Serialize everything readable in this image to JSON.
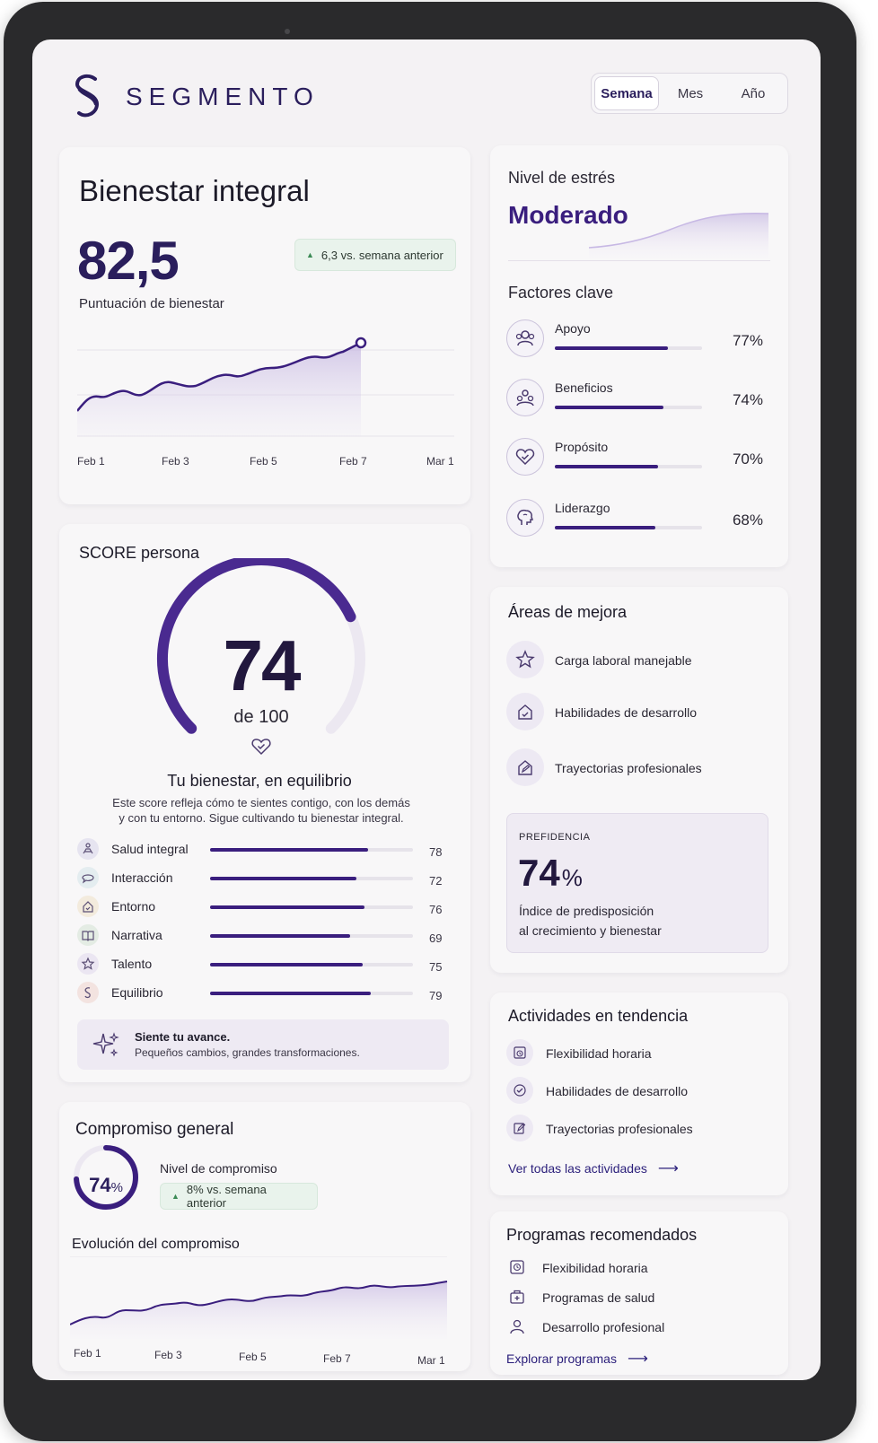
{
  "brand": {
    "name": "SEGMENTO"
  },
  "period_switch": {
    "options": [
      "Semana",
      "Mes",
      "Año"
    ],
    "selected": "Semana"
  },
  "wellbeing": {
    "title": "Bienestar integral",
    "score": "82,5",
    "score_label": "Puntuación de bienestar",
    "trend": "6,3 vs. semana anterior",
    "x_ticks": [
      "Feb 1",
      "Feb 3",
      "Feb 5",
      "Feb 7",
      "Mar 1"
    ]
  },
  "stress": {
    "label": "Nivel de estrés",
    "level": "Moderado",
    "factors_title": "Factores clave",
    "factors": [
      {
        "name": "Apoyo",
        "value": 77,
        "pct": "77%",
        "icon": "people-icon"
      },
      {
        "name": "Beneficios",
        "value": 74,
        "pct": "74%",
        "icon": "group-icon"
      },
      {
        "name": "Propósito",
        "value": 70,
        "pct": "70%",
        "icon": "heart-check-icon"
      },
      {
        "name": "Liderazgo",
        "value": 68,
        "pct": "68%",
        "icon": "brain-icon"
      }
    ]
  },
  "score_persona": {
    "title": "SCORE persona",
    "score": "74",
    "out_of": "de 100",
    "gauge_value": 74,
    "headline": "Tu bienestar, en equilibrio",
    "description_line1": "Este score refleja cómo te sientes contigo, con los demás",
    "description_line2": "y con tu entorno. Sigue cultivando tu bienestar integral.",
    "metrics": [
      {
        "name": "Salud integral",
        "value": 78,
        "icon": "meditation-icon",
        "bg": "#e6e4f0"
      },
      {
        "name": "Interacción",
        "value": 72,
        "icon": "chat-icon",
        "bg": "#e4edf0"
      },
      {
        "name": "Entorno",
        "value": 76,
        "icon": "house-icon",
        "bg": "#f3ebdd"
      },
      {
        "name": "Narrativa",
        "value": 69,
        "icon": "book-icon",
        "bg": "#e4ece4"
      },
      {
        "name": "Talento",
        "value": 75,
        "icon": "star-icon",
        "bg": "#ebe6f2"
      },
      {
        "name": "Equilibrio",
        "value": 79,
        "icon": "balance-icon",
        "bg": "#f3e3e0"
      }
    ],
    "tip_title": "Siente tu avance.",
    "tip_text": "Pequeños cambios, grandes transformaciones."
  },
  "improvement": {
    "title": "Áreas de mejora",
    "areas": [
      {
        "name": "Carga laboral manejable",
        "icon": "star-person-icon"
      },
      {
        "name": "Habilidades de desarrollo",
        "icon": "house-check-icon"
      },
      {
        "name": "Trayectorias profesionales",
        "icon": "house-edit-icon"
      }
    ],
    "caption": "PREFIDENCIA",
    "value": "74",
    "unit": "%",
    "desc_line1": "Índice de predisposición",
    "desc_line2": "al crecimiento y bienestar"
  },
  "engagement": {
    "title": "Compromiso general",
    "ring_value": 74,
    "ring_label": "74",
    "ring_unit": "%",
    "level_label": "Nivel de compromiso",
    "trend": "8% vs. semana anterior",
    "evolution_title": "Evolución del compromiso",
    "x_ticks": [
      "Feb 1",
      "Feb 3",
      "Feb 5",
      "Feb 7",
      "Mar 1"
    ]
  },
  "trending": {
    "title": "Actividades en tendencia",
    "items": [
      {
        "name": "Flexibilidad horaria",
        "icon": "calendar-clock-icon"
      },
      {
        "name": "Habilidades de desarrollo",
        "icon": "check-shield-icon"
      },
      {
        "name": "Trayectorias profesionales",
        "icon": "edit-icon"
      }
    ],
    "link": "Ver todas las actividades"
  },
  "programs": {
    "title": "Programas recomendados",
    "items": [
      {
        "name": "Flexibilidad horaria",
        "icon": "clock-doc-icon"
      },
      {
        "name": "Programas de salud",
        "icon": "medkit-icon"
      },
      {
        "name": "Desarrollo profesional",
        "icon": "person-icon"
      }
    ],
    "link": "Explorar programas"
  },
  "colors": {
    "primary": "#3a1e7e",
    "accent_light": "#e9e3f3",
    "positive": "#3b8a55"
  }
}
